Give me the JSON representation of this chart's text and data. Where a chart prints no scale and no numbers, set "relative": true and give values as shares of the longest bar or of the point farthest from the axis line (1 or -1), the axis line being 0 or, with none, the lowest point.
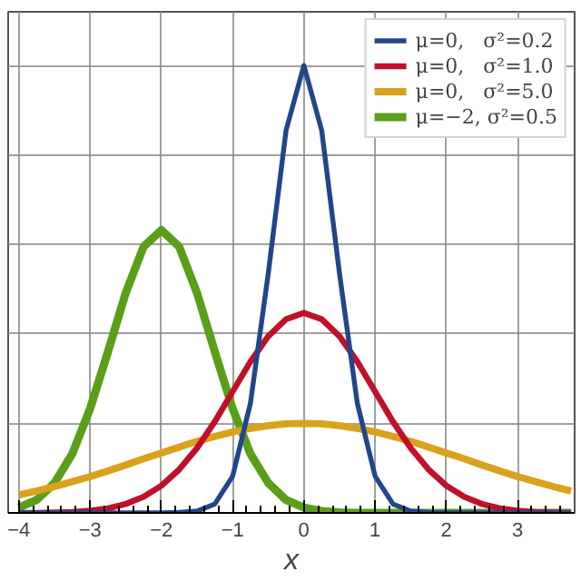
{
  "chart_data": {
    "type": "line",
    "xlabel": "x",
    "relative": true,
    "grid": true,
    "legend": "top right",
    "marker": "none",
    "line_style": "solid",
    "xlim": [
      -4.15,
      3.8
    ],
    "xticks": [
      {
        "value": -4,
        "label": "−4"
      },
      {
        "value": -3,
        "label": "−3"
      },
      {
        "value": -2,
        "label": "−2"
      },
      {
        "value": -1,
        "label": "−1"
      },
      0,
      1,
      2,
      3
    ],
    "x": [
      -4,
      -3.75,
      -3.5,
      -3.25,
      -3,
      -2.75,
      -2.5,
      -2.25,
      -2,
      -1.75,
      -1.5,
      -1.25,
      -1,
      -0.75,
      -0.5,
      -0.25,
      0,
      0.25,
      0.5,
      0.75,
      1,
      1.25,
      1.5,
      1.75,
      2,
      2.25,
      2.5,
      2.75,
      3,
      3.25,
      3.5,
      3.75
    ],
    "series": [
      {
        "name": "μ=0,   σ²=0.2",
        "color": "#22458c",
        "values": [
          0,
          0,
          0,
          0,
          0,
          0,
          0,
          0,
          0,
          0.001,
          0.004,
          0.02,
          0.082,
          0.245,
          0.535,
          0.855,
          1,
          0.855,
          0.535,
          0.245,
          0.082,
          0.02,
          0.004,
          0.001,
          0,
          0,
          0,
          0,
          0,
          0,
          0,
          0
        ]
      },
      {
        "name": "μ=0,   σ²=1.0",
        "color": "#c0102a",
        "values": [
          0,
          0,
          0.001,
          0.002,
          0.005,
          0.01,
          0.02,
          0.036,
          0.061,
          0.097,
          0.145,
          0.204,
          0.271,
          0.338,
          0.395,
          0.433,
          0.447,
          0.433,
          0.395,
          0.338,
          0.271,
          0.204,
          0.145,
          0.097,
          0.061,
          0.036,
          0.02,
          0.01,
          0.005,
          0.002,
          0.001,
          0
        ]
      },
      {
        "name": "μ=0,   σ²=5.0",
        "color": "#d9a21c",
        "values": [
          0.04,
          0.049,
          0.059,
          0.07,
          0.081,
          0.094,
          0.107,
          0.121,
          0.134,
          0.147,
          0.16,
          0.171,
          0.181,
          0.189,
          0.195,
          0.199,
          0.2,
          0.199,
          0.195,
          0.189,
          0.181,
          0.171,
          0.16,
          0.147,
          0.134,
          0.121,
          0.107,
          0.094,
          0.081,
          0.07,
          0.059,
          0.049
        ]
      },
      {
        "name": "μ=−2, σ²=0.5",
        "color": "#5a9e1a",
        "values": [
          0.012,
          0.029,
          0.067,
          0.132,
          0.233,
          0.36,
          0.492,
          0.595,
          0.632,
          0.595,
          0.492,
          0.36,
          0.233,
          0.132,
          0.067,
          0.029,
          0.012,
          0.004,
          0.001,
          0,
          0,
          0,
          0,
          0,
          0,
          0,
          0,
          0,
          0,
          0,
          0,
          0
        ]
      }
    ]
  }
}
